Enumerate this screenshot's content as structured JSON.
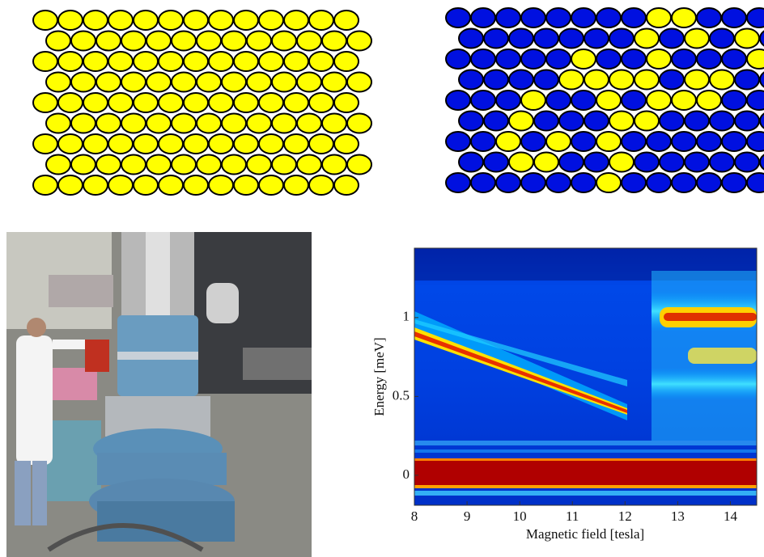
{
  "chart_data": {
    "type": "heatmap",
    "xlabel": "Magnetic field [tesla]",
    "ylabel": "Energy [meV]",
    "xlim": [
      8,
      14.5
    ],
    "ylim": [
      -0.19,
      1.44
    ],
    "xticks": [
      8,
      9,
      10,
      11,
      12,
      13,
      14
    ],
    "yticks": [
      0,
      0.5,
      1
    ]
  }
}
